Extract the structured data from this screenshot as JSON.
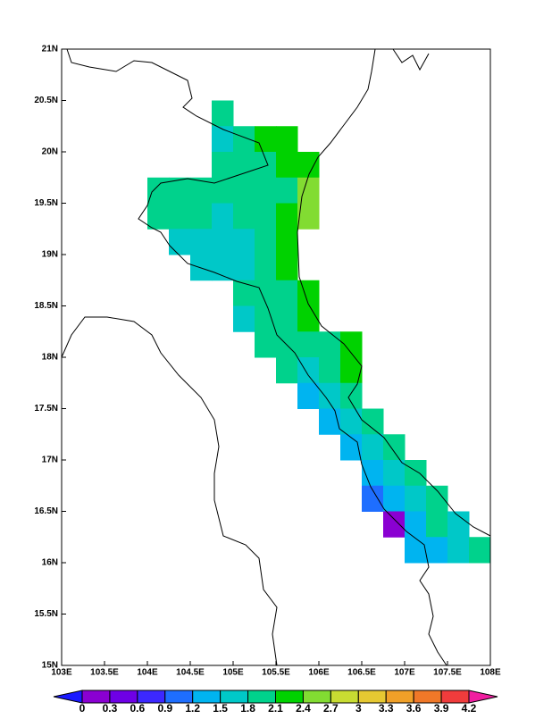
{
  "chart_data": {
    "type": "gridmap",
    "xlim": [
      103,
      108
    ],
    "ylim": [
      15,
      21
    ],
    "xticks": [
      {
        "value": 103,
        "label": "103E"
      },
      {
        "value": 103.5,
        "label": "103.5E"
      },
      {
        "value": 104,
        "label": "104E"
      },
      {
        "value": 104.5,
        "label": "104.5E"
      },
      {
        "value": 105,
        "label": "105E"
      },
      {
        "value": 105.5,
        "label": "105.5E"
      },
      {
        "value": 106,
        "label": "106E"
      },
      {
        "value": 106.5,
        "label": "106.5E"
      },
      {
        "value": 107,
        "label": "107E"
      },
      {
        "value": 107.5,
        "label": "107.5E"
      },
      {
        "value": 108,
        "label": "108E"
      }
    ],
    "yticks": [
      {
        "value": 15,
        "label": "15N"
      },
      {
        "value": 15.5,
        "label": "15.5N"
      },
      {
        "value": 16,
        "label": "16N"
      },
      {
        "value": 16.5,
        "label": "16.5N"
      },
      {
        "value": 17,
        "label": "17N"
      },
      {
        "value": 17.5,
        "label": "17.5N"
      },
      {
        "value": 18,
        "label": "18N"
      },
      {
        "value": 18.5,
        "label": "18.5N"
      },
      {
        "value": 19,
        "label": "19N"
      },
      {
        "value": 19.5,
        "label": "19.5N"
      },
      {
        "value": 20,
        "label": "20N"
      },
      {
        "value": 20.5,
        "label": "20.5N"
      },
      {
        "value": 21,
        "label": "21N"
      }
    ],
    "levels": [
      0,
      0.3,
      0.6,
      0.9,
      1.2,
      1.5,
      1.8,
      2.1,
      2.4,
      2.7,
      3,
      3.3,
      3.6,
      3.9,
      4.2
    ],
    "colors": [
      "#1a1aff",
      "#8a00d2",
      "#6e00e6",
      "#3c28ff",
      "#1e6eff",
      "#00b4f0",
      "#00c8c8",
      "#00d28c",
      "#00d200",
      "#82dc32",
      "#c8dc32",
      "#e6c832",
      "#f0a028",
      "#f07828",
      "#f03c3c",
      "#f01ea0"
    ],
    "cells": {
      "x": [
        104.75,
        104.75,
        105,
        105.25,
        105.5,
        104.75,
        105,
        105.25,
        105.5,
        105.75,
        104,
        104.25,
        104.5,
        104.75,
        105,
        105.25,
        105.5,
        105.75,
        104,
        104.25,
        104.5,
        104.75,
        105,
        105.25,
        105.5,
        105.75,
        104.25,
        104.5,
        104.75,
        105,
        105.25,
        105.5,
        104.5,
        104.75,
        105,
        105.25,
        105.5,
        105,
        105.25,
        105.5,
        105.75,
        105,
        105.25,
        105.5,
        105.75,
        105.25,
        105.5,
        105.75,
        106,
        106.25,
        105.5,
        105.75,
        106,
        106.25,
        105.75,
        106,
        106.25,
        106,
        106.25,
        106.5,
        106.25,
        106.5,
        106.75,
        106.5,
        106.75,
        107,
        106.5,
        106.75,
        107,
        107.25,
        106.75,
        107,
        107.25,
        107.5,
        107,
        107.25,
        107.5,
        107.75
      ],
      "y": [
        20.25,
        20,
        20,
        20,
        20,
        19.75,
        19.75,
        19.75,
        19.75,
        19.75,
        19.5,
        19.5,
        19.5,
        19.5,
        19.5,
        19.5,
        19.5,
        19.5,
        19.25,
        19.25,
        19.25,
        19.25,
        19.25,
        19.25,
        19.25,
        19.25,
        19,
        19,
        19,
        19,
        19,
        19,
        18.75,
        18.75,
        18.75,
        18.75,
        18.75,
        18.5,
        18.5,
        18.5,
        18.5,
        18.25,
        18.25,
        18.25,
        18.25,
        18,
        18,
        18,
        18,
        18,
        17.75,
        17.75,
        17.75,
        17.75,
        17.5,
        17.5,
        17.5,
        17.25,
        17.25,
        17.25,
        17,
        17,
        17,
        16.75,
        16.75,
        16.75,
        16.5,
        16.5,
        16.5,
        16.5,
        16.25,
        16.25,
        16.25,
        16.25,
        16,
        16,
        16,
        16
      ],
      "values": [
        1.95,
        1.65,
        1.95,
        2.25,
        2.25,
        1.95,
        1.95,
        1.95,
        2.25,
        2.25,
        1.95,
        1.95,
        1.95,
        1.95,
        1.95,
        1.95,
        1.95,
        2.55,
        1.95,
        1.95,
        1.95,
        1.65,
        1.95,
        1.95,
        2.25,
        2.55,
        1.65,
        1.65,
        1.65,
        1.65,
        1.95,
        2.25,
        1.65,
        1.65,
        1.65,
        1.95,
        2.25,
        1.95,
        1.95,
        1.95,
        2.25,
        1.65,
        1.95,
        1.95,
        2.25,
        1.95,
        1.95,
        1.95,
        1.95,
        2.25,
        1.95,
        1.65,
        1.95,
        2.25,
        1.35,
        1.65,
        1.95,
        1.35,
        1.65,
        1.95,
        1.35,
        1.65,
        1.95,
        1.35,
        1.65,
        1.95,
        1.05,
        1.35,
        1.65,
        1.95,
        0.15,
        1.35,
        1.95,
        1.65,
        1.35,
        1.35,
        1.65,
        1.95
      ]
    }
  }
}
